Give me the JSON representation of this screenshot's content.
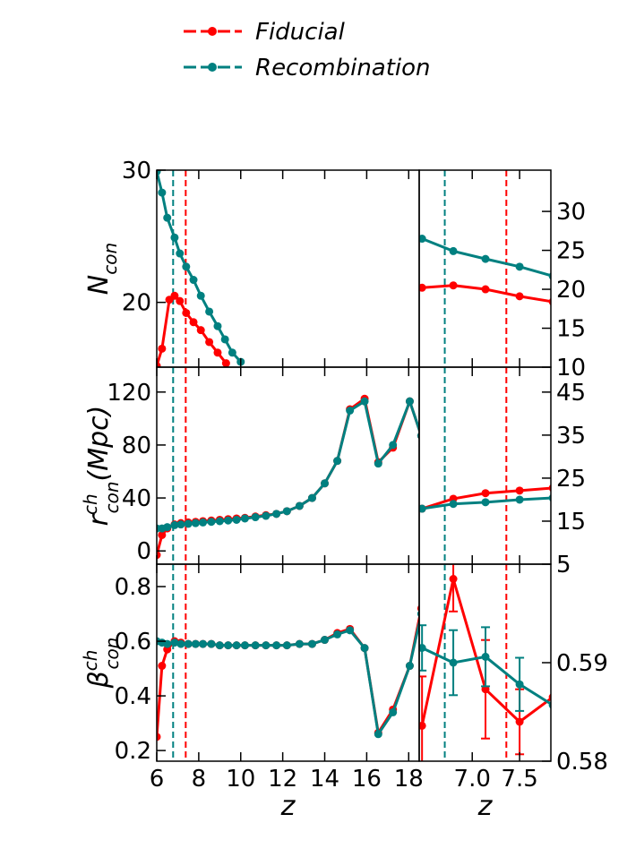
{
  "chart_data": [
    {
      "type": "line",
      "ylabel": {
        "base": "N",
        "sub": "con"
      },
      "xlim": [
        6,
        18.5
      ],
      "ylim": [
        15.1,
        30
      ],
      "yticks": [
        20,
        30
      ],
      "yaxis_side": "left",
      "vlines": [
        {
          "value": 7.38,
          "color": "#ff0000"
        },
        {
          "value": 6.78,
          "color": "#008080"
        }
      ],
      "series": [
        {
          "name": "Fiducial",
          "color": "#ff0000",
          "x": [
            6.0,
            6.25,
            6.6,
            6.85,
            7.1,
            7.4,
            7.75,
            8.1,
            8.5,
            8.9,
            9.3
          ],
          "values": [
            15.2,
            16.5,
            20.2,
            20.5,
            20.1,
            19.2,
            18.5,
            17.9,
            17.0,
            16.2,
            15.4
          ]
        },
        {
          "name": "Recombination",
          "color": "#008080",
          "x": [
            6.0,
            6.25,
            6.5,
            6.85,
            7.1,
            7.4,
            7.75,
            8.1,
            8.5,
            8.9,
            9.25,
            9.6,
            10.0
          ],
          "values": [
            29.9,
            28.3,
            26.4,
            24.9,
            23.7,
            22.7,
            21.7,
            20.5,
            19.3,
            18.2,
            17.2,
            16.2,
            15.5
          ]
        }
      ]
    },
    {
      "type": "line",
      "xlim": [
        6.44,
        7.83
      ],
      "ylim": [
        10,
        35.3
      ],
      "yticks": [
        10,
        15,
        20,
        25,
        30
      ],
      "yaxis_side": "right",
      "vlines": [
        {
          "value": 7.36,
          "color": "#ff0000"
        },
        {
          "value": 6.71,
          "color": "#008080"
        }
      ],
      "series": [
        {
          "color": "#ff0000",
          "x": [
            6.47,
            6.8,
            7.14,
            7.5,
            7.85
          ],
          "values": [
            20.2,
            20.5,
            20.0,
            19.1,
            18.4
          ]
        },
        {
          "color": "#008080",
          "x": [
            6.47,
            6.8,
            7.14,
            7.5,
            7.85
          ],
          "values": [
            26.5,
            24.9,
            23.9,
            22.9,
            21.7
          ]
        }
      ]
    },
    {
      "type": "line",
      "ylabel": {
        "base": "r",
        "sup": "ch",
        "sub": "con",
        "suffix": "(Mpc)"
      },
      "xlim": [
        6,
        18.5
      ],
      "ylim": [
        -10,
        138.8
      ],
      "yticks": [
        0,
        40,
        80,
        120
      ],
      "yaxis_side": "left",
      "vlines": [
        {
          "value": 7.38,
          "color": "#ff0000"
        },
        {
          "value": 6.78,
          "color": "#008080"
        }
      ],
      "series": [
        {
          "color": "#ff0000",
          "x": [
            6.0,
            6.25,
            6.5,
            6.85,
            7.15,
            7.5,
            7.85,
            8.2,
            8.6,
            9.0,
            9.4,
            9.8,
            10.2,
            10.7,
            11.2,
            11.7,
            12.2,
            12.8,
            13.4,
            14.0,
            14.6,
            15.2,
            15.9,
            16.55,
            17.25,
            18.05,
            18.6
          ],
          "values": [
            -3,
            12,
            17,
            20,
            21,
            21.5,
            22,
            22.5,
            23,
            23.5,
            24,
            24.5,
            25,
            26,
            27,
            28,
            30,
            34,
            40,
            51,
            68,
            107,
            115,
            67,
            78,
            113,
            87
          ]
        },
        {
          "color": "#008080",
          "x": [
            6.0,
            6.25,
            6.5,
            6.85,
            7.15,
            7.5,
            7.85,
            8.2,
            8.6,
            9.0,
            9.4,
            9.8,
            10.2,
            10.7,
            11.2,
            11.7,
            12.2,
            12.8,
            13.4,
            14.0,
            14.6,
            15.2,
            15.9,
            16.55,
            17.25,
            18.05,
            18.6
          ],
          "values": [
            17,
            17,
            18,
            19.5,
            20,
            20.5,
            21,
            21.5,
            22,
            22.5,
            23,
            23.5,
            24.5,
            25.5,
            26.5,
            28,
            30,
            34,
            40,
            51,
            68,
            106,
            113,
            66,
            80,
            113,
            87
          ]
        }
      ]
    },
    {
      "type": "line",
      "xlim": [
        6.44,
        7.83
      ],
      "ylim": [
        5,
        50.8
      ],
      "yticks": [
        5,
        15,
        25,
        35,
        45
      ],
      "yaxis_side": "right",
      "vlines": [
        {
          "value": 7.36,
          "color": "#ff0000"
        },
        {
          "value": 6.71,
          "color": "#008080"
        }
      ],
      "series": [
        {
          "color": "#ff0000",
          "x": [
            6.47,
            6.8,
            7.14,
            7.5,
            7.85
          ],
          "values": [
            17.9,
            20.2,
            21.5,
            22.1,
            22.7
          ]
        },
        {
          "color": "#008080",
          "x": [
            6.47,
            6.8,
            7.14,
            7.5,
            7.85
          ],
          "values": [
            17.9,
            19.0,
            19.4,
            20.0,
            20.4
          ]
        }
      ]
    },
    {
      "type": "line",
      "ylabel": {
        "base": "β",
        "sup": "ch",
        "sub": "con"
      },
      "xlabel": "z",
      "xlim": [
        6,
        18.5
      ],
      "ylim": [
        0.161,
        0.882
      ],
      "xticks": [
        6,
        8,
        10,
        12,
        14,
        16,
        18
      ],
      "yticks": [
        0.2,
        0.4,
        0.6,
        0.8
      ],
      "yaxis_side": "left",
      "vlines": [
        {
          "value": 7.38,
          "color": "#ff0000"
        },
        {
          "value": 6.78,
          "color": "#008080"
        }
      ],
      "series": [
        {
          "color": "#ff0000",
          "x": [
            6.0,
            6.25,
            6.5,
            6.85,
            7.15,
            7.5,
            7.85,
            8.2,
            8.6,
            9.0,
            9.4,
            9.8,
            10.2,
            10.7,
            11.2,
            11.7,
            12.2,
            12.8,
            13.4,
            14.0,
            14.6,
            15.2,
            15.9,
            16.55,
            17.25,
            18.05,
            18.6
          ],
          "values": [
            0.25,
            0.51,
            0.57,
            0.6,
            0.595,
            0.59,
            0.59,
            0.59,
            0.59,
            0.585,
            0.585,
            0.585,
            0.585,
            0.585,
            0.585,
            0.585,
            0.585,
            0.59,
            0.59,
            0.605,
            0.63,
            0.645,
            0.575,
            0.265,
            0.35,
            0.51,
            0.72
          ]
        },
        {
          "color": "#008080",
          "x": [
            6.0,
            6.25,
            6.5,
            6.85,
            7.15,
            7.5,
            7.85,
            8.2,
            8.6,
            9.0,
            9.4,
            9.8,
            10.2,
            10.7,
            11.2,
            11.7,
            12.2,
            12.8,
            13.4,
            14.0,
            14.6,
            15.2,
            15.9,
            16.55,
            17.25,
            18.05,
            18.6
          ],
          "values": [
            0.6,
            0.595,
            0.59,
            0.595,
            0.59,
            0.59,
            0.59,
            0.59,
            0.59,
            0.585,
            0.585,
            0.585,
            0.585,
            0.585,
            0.585,
            0.585,
            0.585,
            0.59,
            0.59,
            0.605,
            0.625,
            0.64,
            0.575,
            0.26,
            0.34,
            0.51,
            0.7
          ]
        }
      ]
    },
    {
      "type": "line",
      "xlabel": "z",
      "xlim": [
        6.44,
        7.83
      ],
      "ylim": [
        0.58,
        0.6
      ],
      "xticks": [
        {
          "value": 7,
          "label": "7.0"
        },
        7.5
      ],
      "yticks": [
        0.58,
        0.59
      ],
      "yaxis_side": "right",
      "vlines": [
        {
          "value": 7.36,
          "color": "#ff0000"
        },
        {
          "value": 6.71,
          "color": "#008080"
        }
      ],
      "series": [
        {
          "color": "#ff0000",
          "x": [
            6.47,
            6.8,
            7.14,
            7.5,
            7.85
          ],
          "values": [
            0.5836,
            0.5985,
            0.5873,
            0.584,
            0.5865
          ],
          "errors": [
            0.005,
            0.0033,
            0.005,
            0.0033,
            null
          ]
        },
        {
          "color": "#008080",
          "x": [
            6.47,
            6.8,
            7.14,
            7.5,
            7.85
          ],
          "values": [
            0.5915,
            0.59,
            0.5906,
            0.5878,
            0.5857
          ],
          "errors": [
            0.0023,
            0.0033,
            0.003,
            0.0027,
            null
          ]
        }
      ]
    }
  ]
}
